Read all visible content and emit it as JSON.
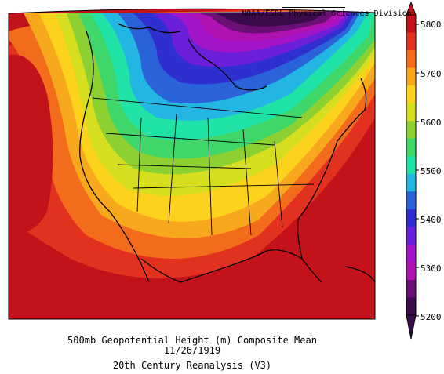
{
  "credit": "NOAA/ESRL Physical Sciences Division",
  "caption": {
    "line1": "500mb Geopotential Height (m) Composite Mean",
    "line2": "11/26/1919",
    "line3": "20th Century Reanalysis (V3)"
  },
  "colorbar": {
    "labels": [
      "5800",
      "5700",
      "5600",
      "5500",
      "5400",
      "5300",
      "5200"
    ],
    "colors": [
      "#c4121b",
      "#e2311e",
      "#f36c1c",
      "#f8a81d",
      "#fcd21c",
      "#d6df1f",
      "#8cd131",
      "#3fd66a",
      "#1fe3a7",
      "#23b6e3",
      "#2a63d9",
      "#2f2fd0",
      "#6b1fd8",
      "#a313c7",
      "#b012b1",
      "#6a0f73",
      "#3b0a4a"
    ]
  }
}
